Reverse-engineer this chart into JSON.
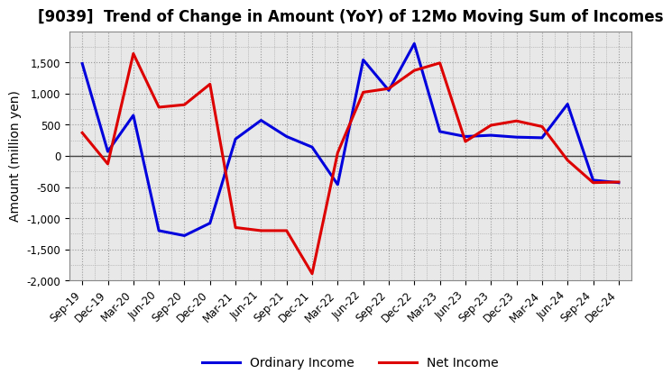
{
  "title": "[9039]  Trend of Change in Amount (YoY) of 12Mo Moving Sum of Incomes",
  "ylabel": "Amount (million yen)",
  "x_labels": [
    "Sep-19",
    "Dec-19",
    "Mar-20",
    "Jun-20",
    "Sep-20",
    "Dec-20",
    "Mar-21",
    "Jun-21",
    "Sep-21",
    "Dec-21",
    "Mar-22",
    "Jun-22",
    "Sep-22",
    "Dec-22",
    "Mar-23",
    "Jun-23",
    "Sep-23",
    "Dec-23",
    "Mar-24",
    "Jun-24",
    "Sep-24",
    "Dec-24"
  ],
  "ordinary_income": [
    1480,
    70,
    650,
    -1200,
    -1280,
    -1080,
    270,
    570,
    310,
    140,
    -460,
    1540,
    1050,
    1800,
    390,
    310,
    330,
    300,
    290,
    830,
    -390,
    -430
  ],
  "net_income": [
    370,
    -130,
    1640,
    780,
    820,
    1150,
    -1150,
    -1200,
    -1200,
    -1890,
    50,
    1020,
    1080,
    1370,
    1490,
    230,
    490,
    560,
    470,
    -70,
    -430,
    -420
  ],
  "ordinary_income_color": "#0000dd",
  "net_income_color": "#dd0000",
  "ylim": [
    -2000,
    2000
  ],
  "yticks": [
    -2000,
    -1500,
    -1000,
    -500,
    0,
    500,
    1000,
    1500
  ],
  "background_color": "#ffffff",
  "grid_color": "#999999",
  "linewidth": 2.2,
  "legend_ordinary": "Ordinary Income",
  "legend_net": "Net Income",
  "title_fontsize": 12,
  "axis_fontsize": 10,
  "tick_fontsize": 8.5,
  "plot_bg_color": "#e8e8e8"
}
